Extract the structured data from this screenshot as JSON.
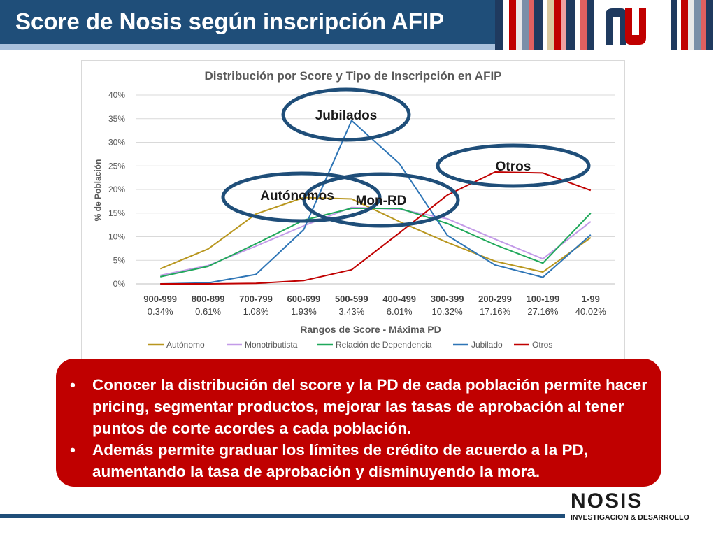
{
  "slide": {
    "title": "Score de Nosis según inscripción AFIP",
    "colors": {
      "title_bar": "#1f4e79",
      "callout": "#c00000"
    }
  },
  "chart_data": {
    "type": "line",
    "title": "Distribución por Score y Tipo de Inscripción en AFIP",
    "xlabel": "Rangos de Score - Máxima PD",
    "ylabel": "% de Población",
    "categories": [
      "900-999",
      "800-899",
      "700-799",
      "600-699",
      "500-599",
      "400-499",
      "300-399",
      "200-299",
      "100-199",
      "1-99"
    ],
    "pd_labels": [
      "0.34%",
      "0.61%",
      "1.08%",
      "1.93%",
      "3.43%",
      "6.01%",
      "10.32%",
      "17.16%",
      "27.16%",
      "40.02%"
    ],
    "ylim": [
      0,
      40
    ],
    "yticks": [
      "0%",
      "5%",
      "10%",
      "15%",
      "20%",
      "25%",
      "30%",
      "35%",
      "40%"
    ],
    "grid": true,
    "legend_position": "bottom",
    "series": [
      {
        "name": "Autónomo",
        "color": "#b8961e",
        "values": [
          3.2,
          7.4,
          14.8,
          18.3,
          18.0,
          13.2,
          8.8,
          4.8,
          2.5,
          9.8
        ]
      },
      {
        "name": "Monotributista",
        "color": "#c39be8",
        "values": [
          1.8,
          3.9,
          8.0,
          12.3,
          16.2,
          15.8,
          13.8,
          9.5,
          5.3,
          13.2
        ]
      },
      {
        "name": "Relación de Dependencia",
        "color": "#1fa85a",
        "values": [
          1.5,
          3.7,
          8.5,
          13.5,
          16.0,
          16.0,
          12.8,
          8.3,
          4.4,
          15.0
        ]
      },
      {
        "name": "Jubilado",
        "color": "#2e75b6",
        "values": [
          0.0,
          0.2,
          2.0,
          11.5,
          34.6,
          25.5,
          10.3,
          4.0,
          1.4,
          10.4
        ]
      },
      {
        "name": "Otros",
        "color": "#c00000",
        "values": [
          0.0,
          0.0,
          0.1,
          0.7,
          3.0,
          10.8,
          18.8,
          23.7,
          23.5,
          19.8
        ]
      }
    ],
    "annotations": [
      "Jubilados",
      "Otros",
      "Autónomos",
      "Mon-RD"
    ]
  },
  "callout": {
    "bullets": [
      "Conocer la distribución del score y la PD de cada población permite hacer pricing, segmentar productos, mejorar las tasas de aprobación al tener puntos de corte acordes a cada población.",
      "Además permite graduar los límites de crédito de acuerdo a la PD, aumentando la tasa de aprobación y disminuyendo la mora."
    ],
    "bullet_symbol": "•"
  },
  "brand": {
    "name": "NOSIS",
    "subtitle": "INVESTIGACION & DESARROLLO",
    "logo_icon": "nosis-nu-logo-icon"
  }
}
